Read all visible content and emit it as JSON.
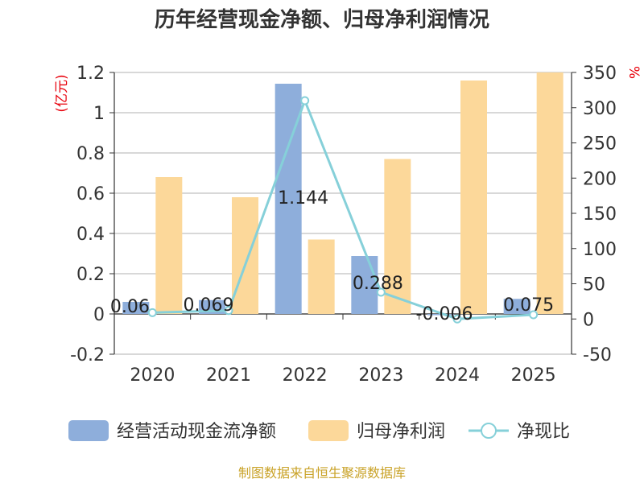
{
  "chart_data": {
    "type": "bar",
    "title": "历年经营现金净额、归母净利润情况",
    "categories": [
      "2020",
      "2021",
      "2022",
      "2023",
      "2024",
      "2025"
    ],
    "left_axis": {
      "unit": "(亿元)",
      "ylim": [
        -0.2,
        1.2
      ],
      "ticks": [
        "-0.2",
        "0",
        "0.2",
        "0.4",
        "0.6",
        "0.8",
        "1",
        "1.2"
      ]
    },
    "right_axis": {
      "unit": "%",
      "ylim": [
        -50,
        350
      ],
      "ticks": [
        "-50",
        "0",
        "50",
        "100",
        "150",
        "200",
        "250",
        "300",
        "350"
      ]
    },
    "series": [
      {
        "name": "经营活动现金流净额",
        "kind": "bar",
        "axis": "left",
        "color": "#8eaedb",
        "values": [
          0.06,
          0.069,
          1.144,
          0.288,
          -0.006,
          0.075
        ],
        "labels": [
          "0.06",
          "0.069",
          "1.144",
          "0.288",
          "-0.006",
          "0.075"
        ]
      },
      {
        "name": "归母净利润",
        "kind": "bar",
        "axis": "left",
        "color": "#fcd89a",
        "values": [
          0.68,
          0.58,
          0.37,
          0.77,
          1.16,
          1.2
        ]
      },
      {
        "name": "净现比",
        "kind": "line",
        "axis": "right",
        "color": "#86d0d9",
        "values": [
          9,
          12,
          310,
          38,
          0,
          6
        ]
      }
    ],
    "grid": true,
    "legend": "bottom"
  },
  "source": "制图数据来自恒生聚源数据库"
}
